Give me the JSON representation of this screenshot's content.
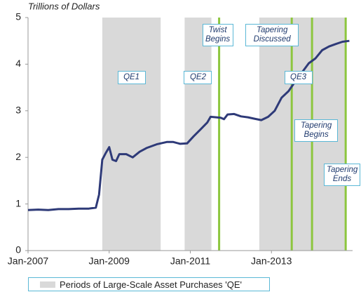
{
  "chart_data": {
    "type": "line",
    "y_label": "Trillions of Dollars",
    "xlim": [
      2007,
      2015
    ],
    "ylim": [
      0,
      5
    ],
    "yticks": [
      0,
      1,
      2,
      3,
      4,
      5
    ],
    "xticks": [
      {
        "value": 2007,
        "label": "Jan-2007"
      },
      {
        "value": 2009,
        "label": "Jan-2009"
      },
      {
        "value": 2011,
        "label": "Jan-2011"
      },
      {
        "value": 2013,
        "label": "Jan-2013"
      }
    ],
    "x": [
      2007.0,
      2007.25,
      2007.5,
      2007.75,
      2008.0,
      2008.25,
      2008.5,
      2008.67,
      2008.75,
      2008.83,
      2008.92,
      2009.0,
      2009.08,
      2009.17,
      2009.25,
      2009.42,
      2009.58,
      2009.75,
      2009.92,
      2010.17,
      2010.42,
      2010.58,
      2010.75,
      2010.92,
      2011.08,
      2011.25,
      2011.42,
      2011.5,
      2011.75,
      2011.83,
      2011.92,
      2012.08,
      2012.25,
      2012.42,
      2012.58,
      2012.75,
      2012.92,
      2013.08,
      2013.25,
      2013.42,
      2013.58,
      2013.75,
      2013.92,
      2014.08,
      2014.25,
      2014.42,
      2014.58,
      2014.75,
      2014.92
    ],
    "series": [
      {
        "color": "#2e3a78",
        "values": [
          0.87,
          0.88,
          0.87,
          0.89,
          0.89,
          0.9,
          0.9,
          0.92,
          1.2,
          1.95,
          2.1,
          2.22,
          1.95,
          1.92,
          2.07,
          2.07,
          2.0,
          2.12,
          2.2,
          2.28,
          2.33,
          2.33,
          2.29,
          2.3,
          2.45,
          2.6,
          2.75,
          2.87,
          2.85,
          2.82,
          2.92,
          2.93,
          2.88,
          2.86,
          2.83,
          2.8,
          2.87,
          3.0,
          3.28,
          3.42,
          3.62,
          3.82,
          4.02,
          4.12,
          4.3,
          4.38,
          4.43,
          4.48,
          4.5
        ]
      }
    ],
    "shaded_color": "#d9d9d9",
    "shaded_legend": "Periods of Large-Scale Asset Purchases 'QE'",
    "shaded": [
      {
        "start": 2008.83,
        "end": 2010.27,
        "label": "QE1"
      },
      {
        "start": 2010.86,
        "end": 2011.52,
        "label": "QE2"
      },
      {
        "start": 2012.7,
        "end": 2014.83,
        "label": "QE3"
      }
    ],
    "event_color": "#8dc63f",
    "events": [
      {
        "x": 2011.71,
        "label": "Twist Begins"
      },
      {
        "x": 2013.5,
        "label": "Tapering Discussed"
      },
      {
        "x": 2014.0,
        "label": "Tapering Begins"
      },
      {
        "x": 2014.83,
        "label": "Tapering Ends"
      }
    ]
  }
}
